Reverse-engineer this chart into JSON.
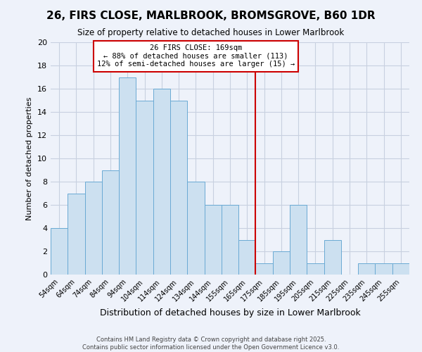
{
  "title": "26, FIRS CLOSE, MARLBROOK, BROMSGROVE, B60 1DR",
  "subtitle": "Size of property relative to detached houses in Lower Marlbrook",
  "xlabel": "Distribution of detached houses by size in Lower Marlbrook",
  "ylabel": "Number of detached properties",
  "bin_labels": [
    "54sqm",
    "64sqm",
    "74sqm",
    "84sqm",
    "94sqm",
    "104sqm",
    "114sqm",
    "124sqm",
    "134sqm",
    "144sqm",
    "155sqm",
    "165sqm",
    "175sqm",
    "185sqm",
    "195sqm",
    "205sqm",
    "215sqm",
    "225sqm",
    "235sqm",
    "245sqm",
    "255sqm"
  ],
  "bar_heights": [
    4,
    7,
    8,
    9,
    17,
    15,
    16,
    15,
    8,
    6,
    6,
    3,
    1,
    2,
    6,
    1,
    3,
    0,
    1,
    1,
    1
  ],
  "bar_color": "#cce0f0",
  "bar_edgecolor": "#6aaad4",
  "grid_color": "#c8d0e0",
  "background_color": "#eef2fa",
  "vline_x": 11.5,
  "vline_color": "#cc0000",
  "annotation_text": "26 FIRS CLOSE: 169sqm\n← 88% of detached houses are smaller (113)\n12% of semi-detached houses are larger (15) →",
  "annotation_box_color": "#ffffff",
  "annotation_box_edgecolor": "#cc0000",
  "ylim": [
    0,
    20
  ],
  "yticks": [
    0,
    2,
    4,
    6,
    8,
    10,
    12,
    14,
    16,
    18,
    20
  ],
  "footer1": "Contains HM Land Registry data © Crown copyright and database right 2025.",
  "footer2": "Contains public sector information licensed under the Open Government Licence v3.0."
}
